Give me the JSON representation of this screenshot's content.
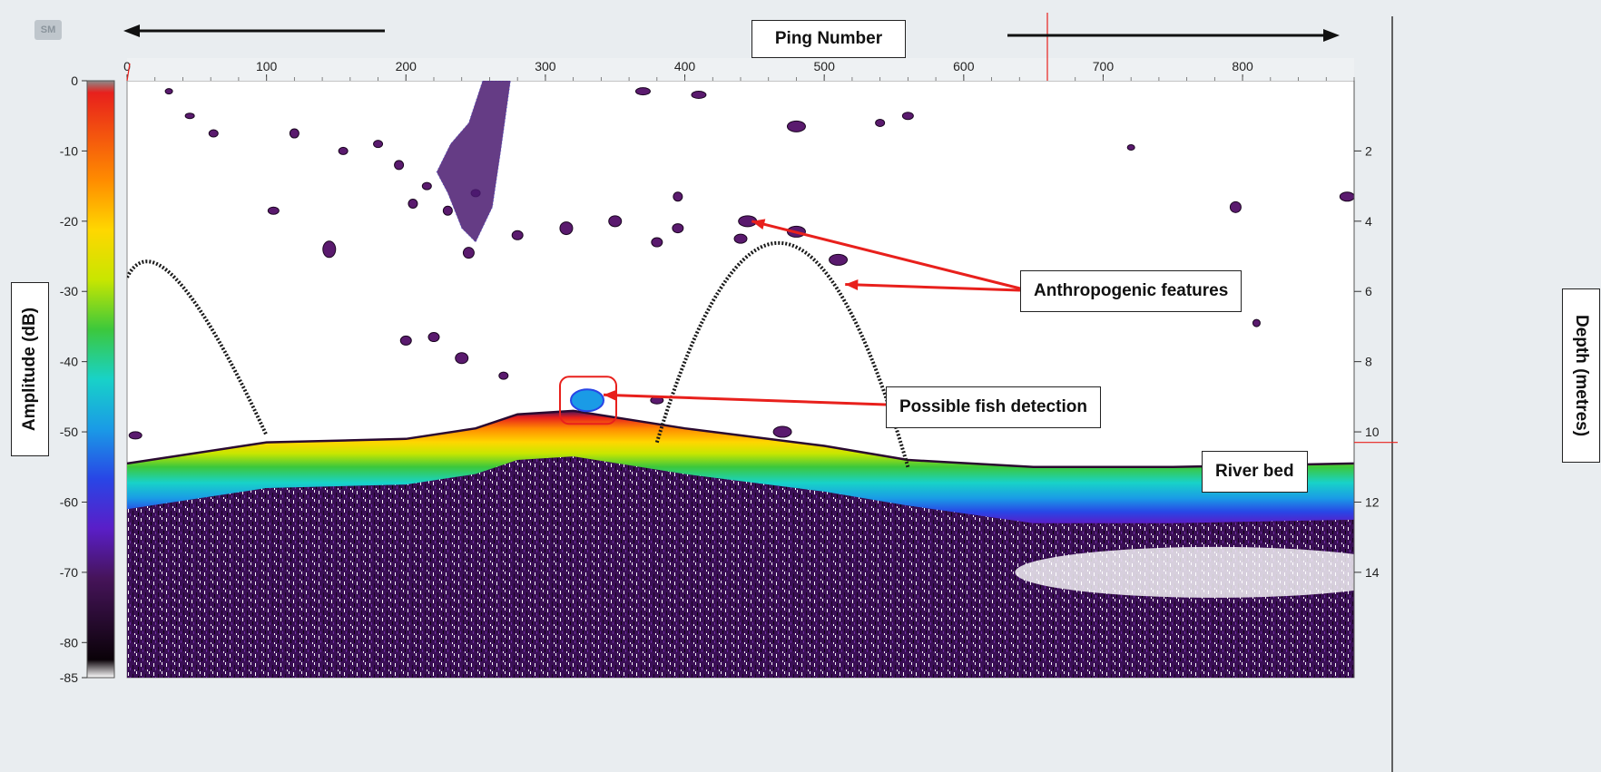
{
  "chart_data": {
    "type": "heatmap",
    "xlabel": "Ping Number",
    "ylabel_left": "Amplitude (dB)",
    "ylabel_right": "Depth (metres)",
    "x_ticks": [
      0,
      100,
      200,
      300,
      400,
      500,
      600,
      700,
      800
    ],
    "x_tick_labels": [
      "0",
      "100",
      "200",
      "300",
      "400",
      "500",
      "600",
      "700",
      "800"
    ],
    "xlim": [
      0,
      880
    ],
    "depth_ticks": [
      2,
      4,
      6,
      8,
      10,
      12,
      14
    ],
    "depth_tick_labels": [
      "2",
      "4",
      "6",
      "8",
      "10",
      "12",
      "14"
    ],
    "depth_lim": [
      0,
      17
    ],
    "colorbar_ticks": [
      0,
      -10,
      -20,
      -30,
      -40,
      -50,
      -60,
      -70,
      -80,
      -85
    ],
    "colorbar_tick_labels": [
      "0",
      "-10",
      "-20",
      "-30",
      "-40",
      "-50",
      "-60",
      "-70",
      "-80",
      "-85"
    ],
    "colorbar_lim": [
      -85,
      0
    ],
    "colorbar_colors": [
      "#8a8a8a",
      "#e8201c",
      "#ff8c00",
      "#ffd700",
      "#c8e600",
      "#3cc83c",
      "#18d2c8",
      "#1a9be6",
      "#2846e6",
      "#5a1ec8",
      "#46145a",
      "#0a0208",
      "#ffffff"
    ],
    "river_bed_depth": [
      {
        "ping": 0,
        "depth": 10.9
      },
      {
        "ping": 100,
        "depth": 10.3
      },
      {
        "ping": 200,
        "depth": 10.2
      },
      {
        "ping": 250,
        "depth": 9.9
      },
      {
        "ping": 280,
        "depth": 9.5
      },
      {
        "ping": 320,
        "depth": 9.4
      },
      {
        "ping": 400,
        "depth": 9.9
      },
      {
        "ping": 500,
        "depth": 10.4
      },
      {
        "ping": 560,
        "depth": 10.8
      },
      {
        "ping": 650,
        "depth": 11.0
      },
      {
        "ping": 750,
        "depth": 11.0
      },
      {
        "ping": 880,
        "depth": 10.9
      }
    ],
    "fish_detection": {
      "ping": 330,
      "depth": 9.1
    },
    "cursor_ping": 660,
    "cursor_depth": 10.3,
    "annotations": [
      {
        "text": "Anthropogenic features"
      },
      {
        "text": "Possible fish detection"
      },
      {
        "text": "River bed"
      }
    ]
  }
}
